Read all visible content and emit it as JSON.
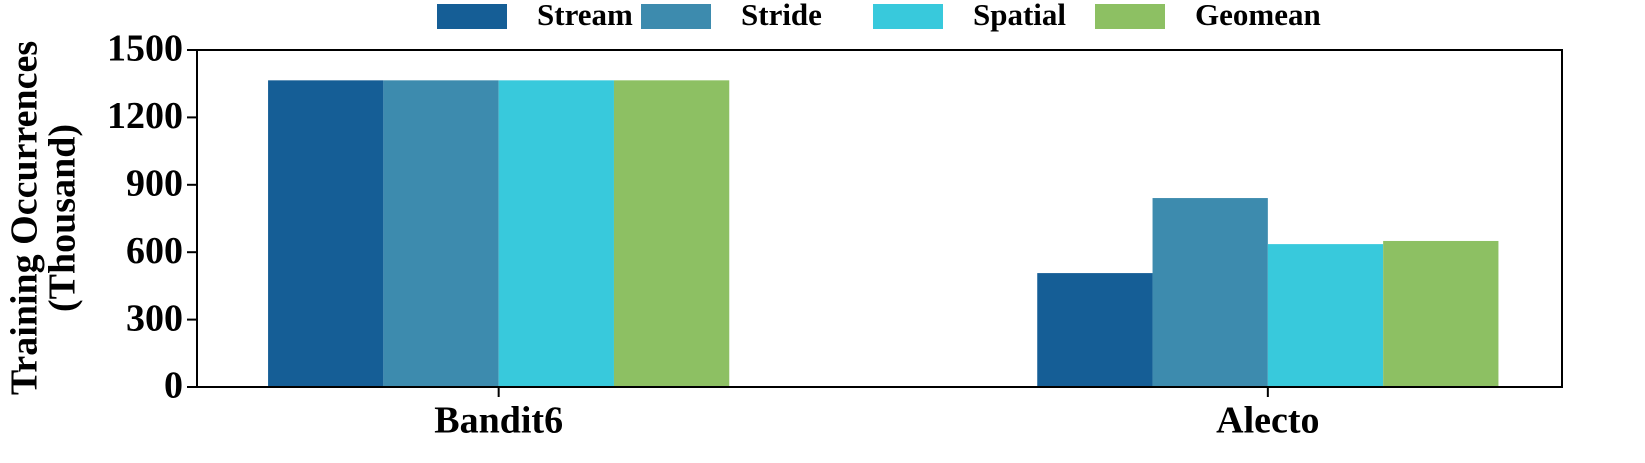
{
  "chart_data": {
    "type": "bar",
    "ylabel": [
      "Training Occurrences",
      "(Thousand)"
    ],
    "categories": [
      "Bandit6",
      "Alecto"
    ],
    "series": [
      {
        "name": "Stream",
        "color": "#155e96",
        "values": [
          1365,
          507
        ]
      },
      {
        "name": "Stride",
        "color": "#3d8bae",
        "values": [
          1365,
          841
        ]
      },
      {
        "name": "Spatial",
        "color": "#38c9dc",
        "values": [
          1365,
          636
        ]
      },
      {
        "name": "Geomean",
        "color": "#8dc063",
        "values": [
          1365,
          650
        ]
      }
    ],
    "ylim": [
      0,
      1500
    ],
    "yticks": [
      0,
      300,
      600,
      900,
      1200,
      1500
    ],
    "legend": "top"
  }
}
